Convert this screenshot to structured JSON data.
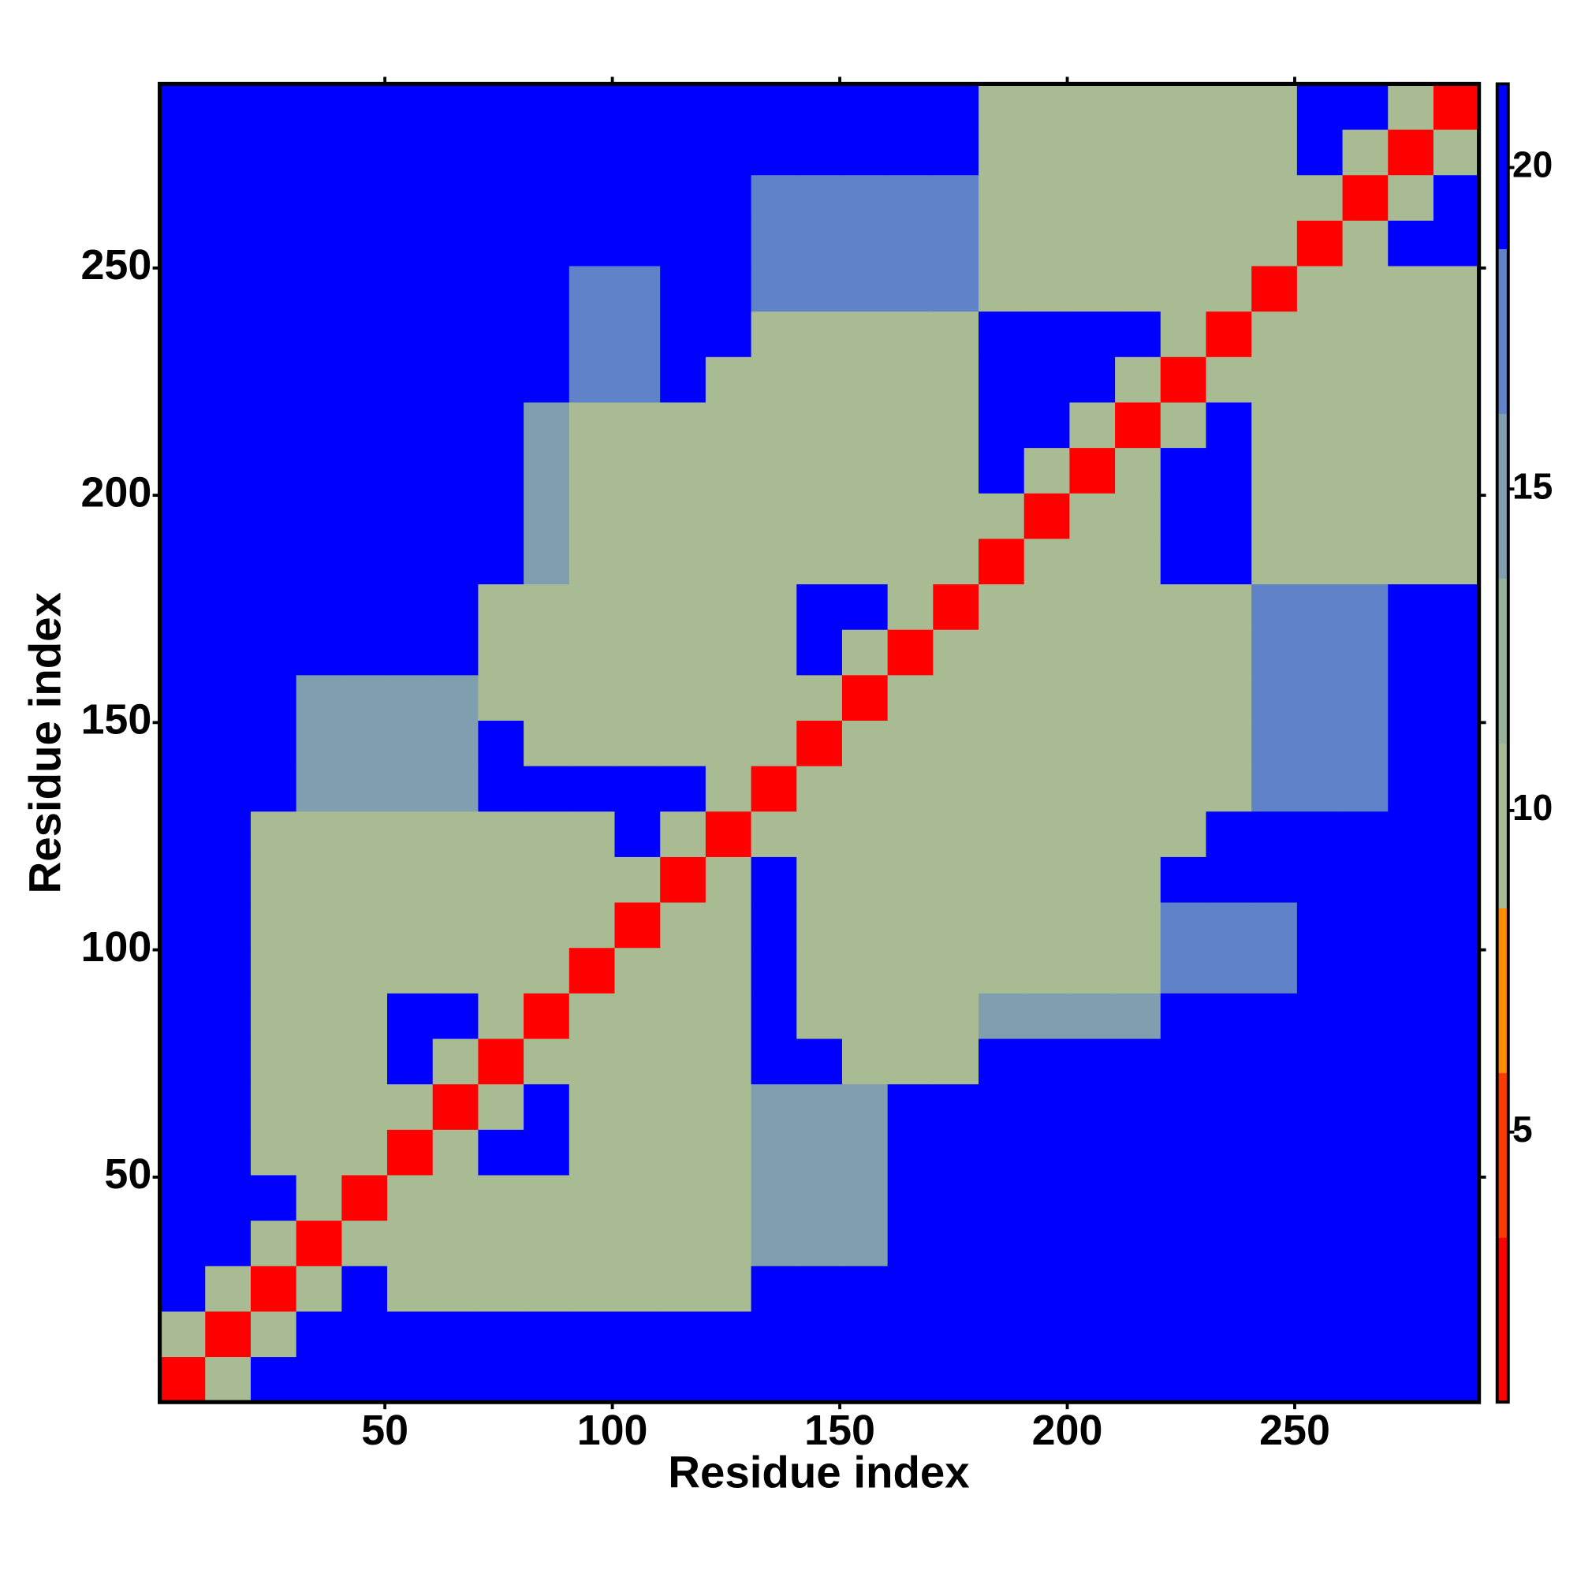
{
  "chart_data": {
    "type": "heatmap",
    "xlabel": "Residue index",
    "ylabel": "Residue index",
    "xbins": [
      0.5,
      10.5,
      20.5,
      30.5,
      40.5,
      50.5,
      60.5,
      70.5,
      80.5,
      90.5,
      100.5,
      110.5,
      120.5,
      130.5,
      140.5,
      150.5,
      160.5,
      170.5,
      180.5,
      190.5,
      200.5,
      210.5,
      220.5,
      230.5,
      240.5,
      250.5,
      260.5,
      270.5,
      280.5,
      290.5
    ],
    "ybins": [
      0.5,
      10.5,
      20.5,
      30.5,
      40.5,
      50.5,
      60.5,
      70.5,
      80.5,
      90.5,
      100.5,
      110.5,
      120.5,
      130.5,
      140.5,
      150.5,
      160.5,
      170.5,
      180.5,
      190.5,
      200.5,
      210.5,
      220.5,
      230.5,
      240.5,
      250.5,
      260.5,
      270.5,
      280.5,
      290.5
    ],
    "xlim": [
      0.5,
      290.5
    ],
    "ylim": [
      0.5,
      290.5
    ],
    "xticks": [
      50,
      100,
      150,
      200,
      250
    ],
    "yticks": [
      50,
      100,
      150,
      200,
      250
    ],
    "clim": [
      0.8,
      21.3
    ],
    "cticks": [
      5,
      10,
      15,
      20
    ],
    "colors": [
      "#ff0000",
      "#ff3a00",
      "#ff8c00",
      "#a9bb92",
      "#95b39b",
      "#7f9fb0",
      "#5f82c8",
      "#0000ff"
    ],
    "values": [
      [
        3,
        10,
        21,
        21,
        21,
        21,
        21,
        21,
        21,
        21,
        21,
        21,
        21,
        21,
        21,
        21,
        21,
        21,
        21,
        21,
        21,
        21,
        21,
        21,
        21,
        21,
        21,
        21,
        21
      ],
      [
        10,
        3,
        10,
        21,
        21,
        21,
        21,
        21,
        21,
        21,
        21,
        21,
        21,
        21,
        21,
        21,
        21,
        21,
        21,
        21,
        21,
        21,
        21,
        21,
        21,
        21,
        21,
        21,
        21
      ],
      [
        21,
        10,
        3,
        10,
        21,
        11,
        11,
        11,
        11,
        11,
        11,
        11,
        11,
        21,
        21,
        21,
        21,
        21,
        21,
        21,
        21,
        21,
        21,
        21,
        21,
        21,
        21,
        21,
        21
      ],
      [
        21,
        21,
        10,
        3,
        10,
        11,
        11,
        11,
        11,
        11,
        11,
        11,
        11,
        16,
        16,
        16,
        21,
        21,
        21,
        21,
        21,
        21,
        21,
        21,
        21,
        21,
        21,
        21,
        21
      ],
      [
        21,
        21,
        21,
        10,
        3,
        10,
        11,
        11,
        11,
        11,
        11,
        11,
        11,
        16,
        16,
        16,
        21,
        21,
        21,
        21,
        21,
        21,
        21,
        21,
        21,
        21,
        21,
        21,
        21
      ],
      [
        21,
        21,
        11,
        11,
        10,
        3,
        10,
        21,
        21,
        11,
        11,
        11,
        11,
        16,
        16,
        16,
        21,
        21,
        21,
        21,
        21,
        21,
        21,
        21,
        21,
        21,
        21,
        21,
        21
      ],
      [
        21,
        21,
        11,
        11,
        11,
        10,
        3,
        10,
        21,
        11,
        11,
        11,
        11,
        16,
        16,
        16,
        21,
        21,
        21,
        21,
        21,
        21,
        21,
        21,
        21,
        21,
        21,
        21,
        21
      ],
      [
        21,
        21,
        11,
        11,
        11,
        21,
        10,
        3,
        10,
        11,
        11,
        11,
        11,
        21,
        21,
        11,
        11,
        11,
        21,
        21,
        21,
        21,
        21,
        21,
        21,
        21,
        21,
        21,
        21
      ],
      [
        21,
        21,
        11,
        11,
        11,
        21,
        21,
        10,
        3,
        10,
        11,
        11,
        11,
        21,
        11,
        11,
        11,
        11,
        16,
        16,
        16,
        16,
        21,
        21,
        21,
        21,
        21,
        21,
        21
      ],
      [
        21,
        21,
        11,
        11,
        11,
        11,
        11,
        11,
        10,
        3,
        10,
        11,
        11,
        21,
        11,
        11,
        11,
        11,
        11,
        11,
        11,
        11,
        17,
        17,
        17,
        21,
        21,
        21,
        21
      ],
      [
        21,
        21,
        11,
        11,
        11,
        11,
        11,
        11,
        11,
        10,
        3,
        10,
        11,
        21,
        11,
        11,
        11,
        11,
        11,
        11,
        11,
        11,
        17,
        17,
        17,
        21,
        21,
        21,
        21
      ],
      [
        21,
        21,
        11,
        11,
        11,
        11,
        11,
        11,
        11,
        11,
        10,
        3,
        10,
        21,
        11,
        11,
        11,
        11,
        11,
        11,
        11,
        11,
        21,
        21,
        21,
        21,
        21,
        21,
        21
      ],
      [
        21,
        21,
        11,
        11,
        11,
        11,
        11,
        11,
        11,
        11,
        21,
        10,
        3,
        10,
        11,
        11,
        11,
        11,
        11,
        11,
        11,
        11,
        11,
        21,
        21,
        21,
        21,
        21,
        21
      ],
      [
        21,
        21,
        21,
        16,
        16,
        16,
        16,
        21,
        21,
        21,
        21,
        21,
        10,
        3,
        10,
        11,
        11,
        11,
        11,
        11,
        11,
        11,
        11,
        11,
        17,
        17,
        17,
        21,
        21
      ],
      [
        21,
        21,
        21,
        16,
        16,
        16,
        16,
        21,
        11,
        11,
        11,
        11,
        11,
        10,
        3,
        10,
        11,
        11,
        11,
        11,
        11,
        11,
        11,
        11,
        17,
        17,
        17,
        21,
        21
      ],
      [
        21,
        21,
        21,
        16,
        16,
        16,
        16,
        11,
        11,
        11,
        11,
        11,
        11,
        11,
        10,
        3,
        10,
        11,
        11,
        11,
        11,
        11,
        11,
        11,
        17,
        17,
        17,
        21,
        21
      ],
      [
        21,
        21,
        21,
        21,
        21,
        21,
        21,
        11,
        11,
        11,
        11,
        11,
        11,
        11,
        21,
        10,
        3,
        10,
        11,
        11,
        11,
        11,
        11,
        11,
        17,
        17,
        17,
        21,
        21
      ],
      [
        21,
        21,
        21,
        21,
        21,
        21,
        21,
        11,
        11,
        11,
        11,
        11,
        11,
        11,
        21,
        21,
        10,
        3,
        10,
        11,
        11,
        11,
        11,
        11,
        17,
        17,
        17,
        21,
        21
      ],
      [
        21,
        21,
        21,
        21,
        21,
        21,
        21,
        21,
        16,
        11,
        11,
        11,
        11,
        11,
        11,
        11,
        11,
        10,
        3,
        10,
        11,
        11,
        21,
        21,
        11,
        11,
        11,
        11,
        11
      ],
      [
        21,
        21,
        21,
        21,
        21,
        21,
        21,
        21,
        16,
        11,
        11,
        11,
        11,
        11,
        11,
        11,
        11,
        11,
        10,
        3,
        10,
        11,
        21,
        21,
        11,
        11,
        11,
        11,
        11
      ],
      [
        21,
        21,
        21,
        21,
        21,
        21,
        21,
        21,
        16,
        11,
        11,
        11,
        11,
        11,
        11,
        11,
        11,
        11,
        21,
        10,
        3,
        10,
        21,
        21,
        11,
        11,
        11,
        11,
        11
      ],
      [
        21,
        21,
        21,
        21,
        21,
        21,
        21,
        21,
        16,
        11,
        11,
        11,
        11,
        11,
        11,
        11,
        11,
        11,
        21,
        21,
        10,
        3,
        10,
        21,
        11,
        11,
        11,
        11,
        11
      ],
      [
        21,
        21,
        21,
        21,
        21,
        21,
        21,
        21,
        21,
        17,
        17,
        21,
        11,
        11,
        11,
        11,
        11,
        11,
        21,
        21,
        21,
        10,
        3,
        10,
        11,
        11,
        11,
        11,
        11
      ],
      [
        21,
        21,
        21,
        21,
        21,
        21,
        21,
        21,
        21,
        17,
        17,
        21,
        21,
        11,
        11,
        11,
        11,
        11,
        21,
        21,
        21,
        21,
        10,
        3,
        10,
        11,
        11,
        11,
        11
      ],
      [
        21,
        21,
        21,
        21,
        21,
        21,
        21,
        21,
        21,
        17,
        17,
        21,
        21,
        17,
        17,
        17,
        17,
        17,
        11,
        11,
        11,
        11,
        11,
        10,
        3,
        10,
        11,
        11,
        11
      ],
      [
        21,
        21,
        21,
        21,
        21,
        21,
        21,
        21,
        21,
        21,
        21,
        21,
        21,
        17,
        17,
        17,
        17,
        17,
        11,
        11,
        11,
        11,
        11,
        11,
        10,
        3,
        10,
        21,
        21
      ],
      [
        21,
        21,
        21,
        21,
        21,
        21,
        21,
        21,
        21,
        21,
        21,
        21,
        21,
        17,
        17,
        17,
        17,
        17,
        11,
        11,
        11,
        11,
        11,
        11,
        11,
        10,
        3,
        10,
        21
      ],
      [
        21,
        21,
        21,
        21,
        21,
        21,
        21,
        21,
        21,
        21,
        21,
        21,
        21,
        21,
        21,
        21,
        21,
        21,
        11,
        11,
        11,
        11,
        11,
        11,
        11,
        21,
        10,
        3,
        10
      ],
      [
        21,
        21,
        21,
        21,
        21,
        21,
        21,
        21,
        21,
        21,
        21,
        21,
        21,
        21,
        21,
        21,
        21,
        21,
        11,
        11,
        11,
        11,
        11,
        11,
        11,
        21,
        21,
        10,
        3
      ]
    ]
  }
}
